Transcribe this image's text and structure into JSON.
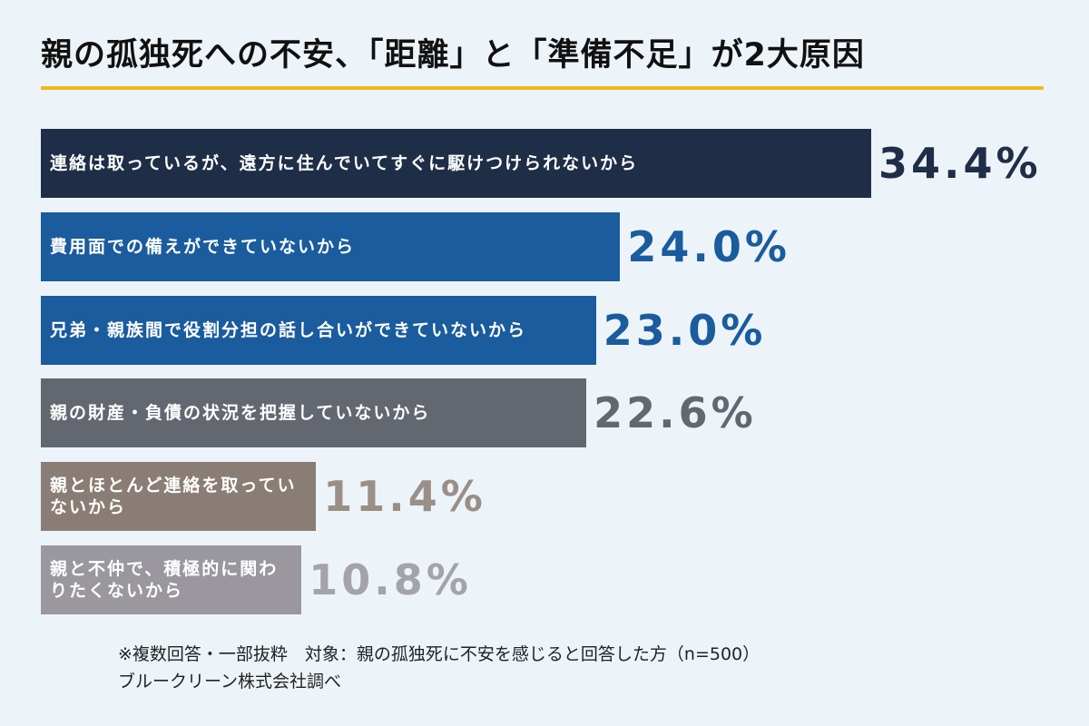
{
  "chart_data": {
    "type": "bar",
    "orientation": "horizontal",
    "title": "親の孤独死への不安、「距離」と「準備不足」が2大原因",
    "categories": [
      "連絡は取っているが、遠方に住んでいてすぐに駆けつけられないから",
      "費用面での備えができていないから",
      "兄弟・親族間で役割分担の話し合いができていないから",
      "親の財産・負債の状況を把握していないから",
      "親とほとんど連絡を取っていないから",
      "親と不仲で、積極的に関わりたくないから"
    ],
    "values": [
      34.4,
      24.0,
      23.0,
      22.6,
      11.4,
      10.8
    ],
    "value_labels": [
      "34.4%",
      "24.0%",
      "23.0%",
      "22.6%",
      "11.4%",
      "10.8%"
    ],
    "colors": [
      "#1f2e47",
      "#1a5c9d",
      "#1a5c9d",
      "#626770",
      "#8a7d75",
      "#9a989e"
    ],
    "value_label_colors": [
      "#1f2e47",
      "#1a5c9d",
      "#1a5c9d",
      "#626770",
      "#9a8f87",
      "#a4a3a9"
    ],
    "footnotes": [
      "※複数回答・一部抜粋　対象：親の孤独死に不安を感じると回答した方（n=500）",
      "ブルークリーン株式会社調べ"
    ]
  }
}
